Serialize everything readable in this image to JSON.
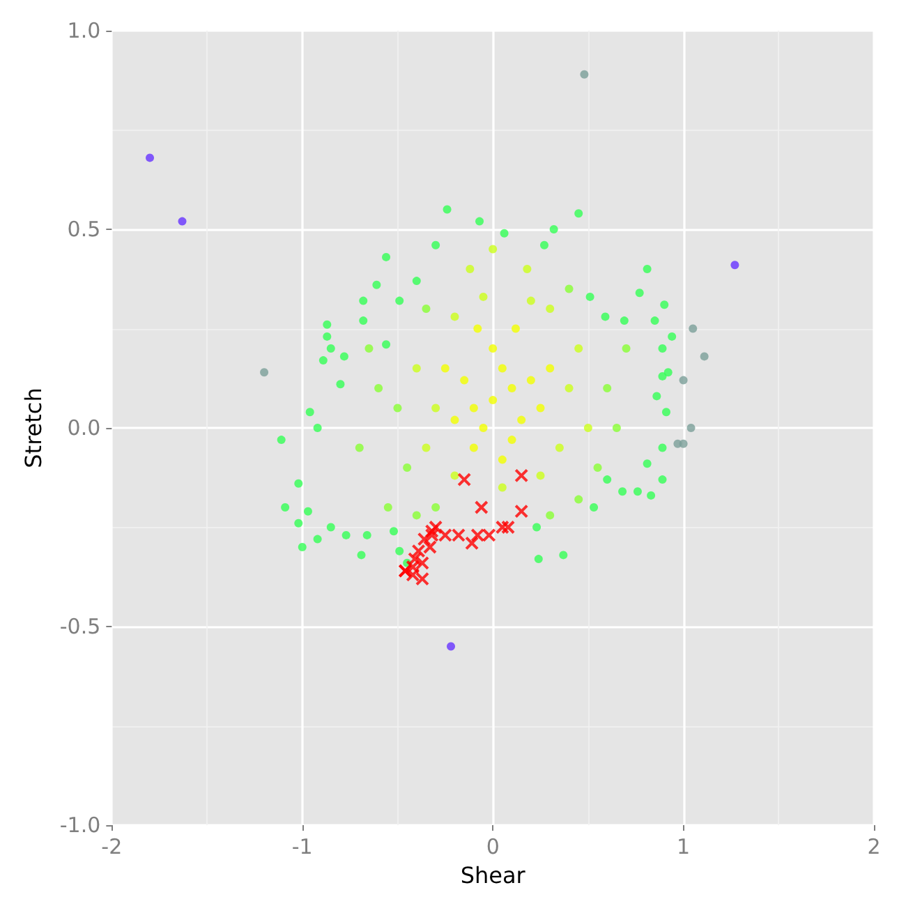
{
  "chart_data": {
    "type": "scatter",
    "xlabel": "Shear",
    "ylabel": "Stretch",
    "xlim": [
      -2,
      2
    ],
    "ylim": [
      -1,
      1
    ],
    "xticks": [
      -2,
      -1,
      0,
      1,
      2
    ],
    "yticks": [
      {
        "value": -1,
        "label": "-1.0"
      },
      {
        "value": -0.5,
        "label": "-0.5"
      },
      {
        "value": 0,
        "label": "0.0"
      },
      {
        "value": 0.5,
        "label": "0.5"
      },
      {
        "value": 1,
        "label": "1.0"
      }
    ],
    "grid": true,
    "marker": "circle",
    "series": [
      {
        "color": "#33ff55",
        "x": [
          -0.24,
          -0.07,
          -0.3,
          -0.56,
          -0.61,
          -0.68,
          -0.68,
          -0.87,
          -0.87,
          -0.85,
          -0.89,
          -0.78,
          -0.8,
          -0.96,
          -0.92,
          -0.56,
          -0.49,
          -0.4,
          0.45,
          0.06,
          0.32,
          0.27,
          0.81,
          0.77,
          0.9,
          0.85,
          0.94,
          0.89,
          0.92,
          0.89,
          0.86,
          0.91,
          0.51,
          0.59,
          0.69,
          -1.11,
          -1.02,
          -1.09,
          -1.02,
          -1.0,
          -0.92,
          -0.97,
          -0.85,
          -0.77,
          -0.69,
          -0.66,
          -0.49,
          -0.45,
          -0.52,
          0.24,
          0.37,
          0.53,
          0.68,
          0.76,
          0.83,
          0.89,
          0.6,
          0.81,
          0.89,
          0.23
        ],
        "values": [
          0.55,
          0.52,
          0.46,
          0.43,
          0.36,
          0.32,
          0.27,
          0.26,
          0.23,
          0.2,
          0.17,
          0.18,
          0.11,
          0.04,
          0.0,
          0.21,
          0.32,
          0.37,
          0.54,
          0.49,
          0.5,
          0.46,
          0.4,
          0.34,
          0.31,
          0.27,
          0.23,
          0.2,
          0.14,
          0.13,
          0.08,
          0.04,
          0.33,
          0.28,
          0.27,
          -0.03,
          -0.14,
          -0.2,
          -0.24,
          -0.3,
          -0.28,
          -0.21,
          -0.25,
          -0.27,
          -0.32,
          -0.27,
          -0.31,
          -0.34,
          -0.26,
          -0.33,
          -0.32,
          -0.2,
          -0.16,
          -0.16,
          -0.17,
          -0.13,
          -0.13,
          -0.09,
          -0.05,
          -0.25
        ]
      },
      {
        "color": "#88ff33",
        "x": [
          -0.45,
          -0.5,
          -0.55,
          -0.6,
          0.55,
          0.6,
          0.65,
          0.45,
          -0.35,
          0.4,
          -0.3,
          0.3,
          -0.7,
          -0.65,
          0.7,
          -0.4
        ],
        "values": [
          -0.1,
          0.05,
          -0.2,
          0.1,
          -0.1,
          0.1,
          0.0,
          -0.18,
          0.3,
          0.35,
          -0.2,
          -0.22,
          -0.05,
          0.2,
          0.2,
          -0.22
        ]
      },
      {
        "color": "#ccff1a",
        "x": [
          0.35,
          0.4,
          0.3,
          0.2,
          -0.05,
          -0.2,
          -0.3,
          -0.35,
          -0.2,
          0.05,
          0.25,
          0.45,
          0.5,
          -0.4,
          0.18,
          -0.12,
          0.0
        ],
        "values": [
          -0.05,
          0.1,
          0.3,
          0.32,
          0.33,
          0.28,
          0.05,
          -0.05,
          -0.12,
          -0.15,
          -0.12,
          0.2,
          0.0,
          0.15,
          0.4,
          0.4,
          0.45
        ]
      },
      {
        "color": "#f2ff00",
        "x": [
          0,
          0.1,
          -0.1,
          0.05,
          -0.05,
          0.15,
          0.2,
          -0.15,
          0,
          0.1,
          -0.1,
          0.25,
          -0.2,
          0.05,
          0.3,
          -0.25,
          0.12,
          -0.08
        ],
        "values": [
          0.07,
          0.1,
          0.05,
          0.15,
          0,
          0.02,
          0.12,
          0.12,
          0.2,
          -0.03,
          -0.05,
          0.05,
          0.02,
          -0.08,
          0.15,
          0.15,
          0.25,
          0.25
        ]
      },
      {
        "color": "#7a9f99",
        "x": [
          0.48,
          -1.2,
          1.05,
          1.11,
          1.04,
          0.97,
          1.0,
          1.0
        ],
        "values": [
          0.89,
          0.14,
          0.25,
          0.18,
          0.0,
          -0.04,
          -0.04,
          0.12
        ]
      },
      {
        "color": "#6633ff",
        "x": [
          -1.8,
          -1.63,
          1.27,
          -0.22
        ],
        "values": [
          0.68,
          0.52,
          0.41,
          -0.55
        ]
      },
      {
        "color": "#ff0000",
        "marker": "cross",
        "x": [
          -0.15,
          -0.06,
          0.15,
          0.15,
          0.08,
          0.05,
          -0.02,
          -0.08,
          -0.11,
          -0.18,
          -0.25,
          -0.3,
          -0.32,
          -0.33,
          -0.32,
          -0.36,
          -0.37,
          -0.42,
          -0.46,
          -0.41,
          -0.39,
          -0.46,
          -0.42,
          -0.37
        ],
        "values": [
          -0.13,
          -0.2,
          -0.12,
          -0.21,
          -0.25,
          -0.25,
          -0.27,
          -0.27,
          -0.29,
          -0.27,
          -0.27,
          -0.25,
          -0.27,
          -0.3,
          -0.26,
          -0.28,
          -0.34,
          -0.35,
          -0.36,
          -0.33,
          -0.31,
          -0.36,
          -0.37,
          -0.38
        ]
      }
    ]
  }
}
